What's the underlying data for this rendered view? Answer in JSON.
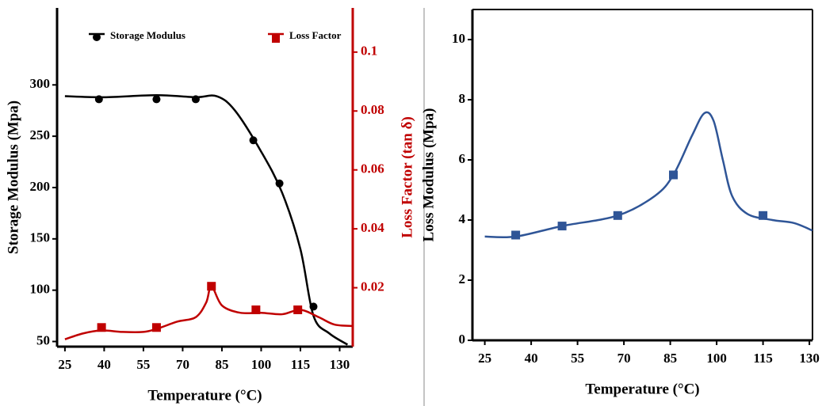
{
  "chart_data": [
    {
      "type": "line",
      "xlabel": "Temperature (°C)",
      "ylabel": "Storage Modulus (Mpa)",
      "y2label": "Loss Factor (tan δ)",
      "xlim": [
        22,
        135
      ],
      "xticks": [
        25,
        40,
        55,
        70,
        85,
        100,
        115,
        130
      ],
      "ylim": [
        45,
        375
      ],
      "yticks": [
        50,
        100,
        150,
        200,
        250,
        300
      ],
      "y2lim": [
        0,
        0.115
      ],
      "y2ticks": [
        0.02,
        0.04,
        0.06,
        0.08,
        0.1
      ],
      "y2color": "#c00000",
      "legend": true,
      "frame": false,
      "series": [
        {
          "name": "Storage Modulus",
          "color": "#000000",
          "marker": "circle",
          "x": [
            38,
            60,
            75,
            97,
            107,
            120
          ],
          "values": [
            286,
            286,
            286,
            246,
            204,
            84
          ],
          "curve_x": [
            25,
            40,
            60,
            75,
            83,
            90,
            100,
            108,
            115,
            120,
            126,
            133
          ],
          "curve_values": [
            289,
            288,
            290,
            288,
            289,
            275,
            235,
            195,
            140,
            75,
            58,
            47
          ]
        },
        {
          "name": "Loss Factor",
          "color": "#c00000",
          "marker": "square",
          "axis": "y2",
          "x": [
            39,
            60,
            81,
            98,
            114
          ],
          "values": [
            0.0065,
            0.0065,
            0.0205,
            0.0125,
            0.0125
          ],
          "curve_x": [
            25,
            32,
            39,
            47,
            55,
            60,
            68,
            75,
            79,
            81,
            85,
            92,
            100,
            108,
            115,
            122,
            128,
            135
          ],
          "curve_values": [
            0.0025,
            0.0045,
            0.0055,
            0.005,
            0.005,
            0.006,
            0.0085,
            0.01,
            0.015,
            0.0205,
            0.014,
            0.0115,
            0.0115,
            0.011,
            0.0125,
            0.01,
            0.0075,
            0.007
          ]
        }
      ]
    },
    {
      "type": "line",
      "xlabel": "Temperature (°C)",
      "ylabel": "Loss Modulus (Mpa)",
      "xlim": [
        21,
        131
      ],
      "xticks": [
        25,
        40,
        55,
        70,
        85,
        100,
        115,
        130
      ],
      "ylim": [
        0,
        11
      ],
      "yticks": [
        0,
        2,
        4,
        6,
        8,
        10
      ],
      "legend": false,
      "frame": true,
      "series": [
        {
          "color": "#2f5597",
          "marker": "square",
          "x": [
            35,
            50,
            68,
            86,
            115
          ],
          "values": [
            3.5,
            3.8,
            4.15,
            5.5,
            4.15
          ],
          "curve_x": [
            25,
            35,
            50,
            68,
            80,
            86,
            92,
            96,
            99,
            102,
            105,
            110,
            118,
            125,
            131
          ],
          "curve_values": [
            3.45,
            3.45,
            3.8,
            4.15,
            4.8,
            5.5,
            6.8,
            7.55,
            7.3,
            6,
            4.8,
            4.2,
            4,
            3.9,
            3.65
          ]
        }
      ]
    }
  ]
}
